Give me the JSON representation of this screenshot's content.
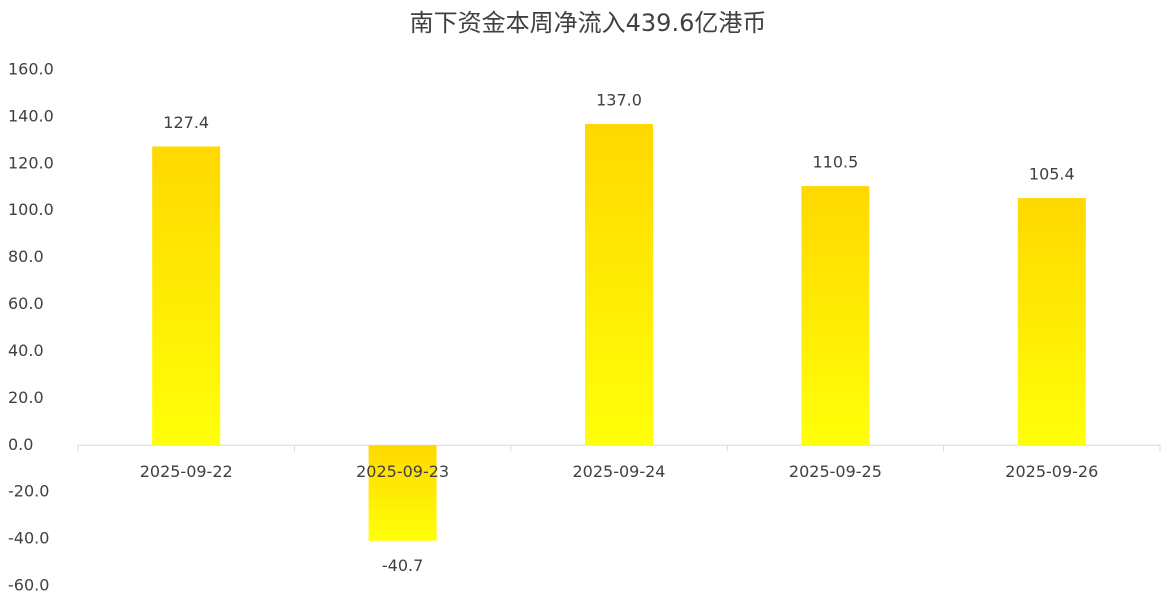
{
  "chart_data": {
    "type": "bar",
    "title": "南下资金本周净流入439.6亿港币",
    "categories": [
      "2025-09-22",
      "2025-09-23",
      "2025-09-24",
      "2025-09-25",
      "2025-09-26"
    ],
    "values": [
      127.4,
      -40.7,
      137.0,
      110.5,
      105.4
    ],
    "value_labels": [
      "127.4",
      "-40.7",
      "137.0",
      "110.5",
      "105.4"
    ],
    "gradient": [
      "#FFD800",
      "#FFFF08"
    ],
    "ylim": [
      -60,
      160
    ],
    "yticks": [
      {
        "value": -60,
        "label": "-60.0"
      },
      {
        "value": -40,
        "label": "-40.0"
      },
      {
        "value": -20,
        "label": "-20.0"
      },
      {
        "value": 0,
        "label": "0.0"
      },
      {
        "value": 20,
        "label": "20.0"
      },
      {
        "value": 40,
        "label": "40.0"
      },
      {
        "value": 60,
        "label": "60.0"
      },
      {
        "value": 80,
        "label": "80.0"
      },
      {
        "value": 100,
        "label": "100.0"
      },
      {
        "value": 120,
        "label": "120.0"
      },
      {
        "value": 140,
        "label": "140.0"
      },
      {
        "value": 160,
        "label": "160.0"
      }
    ],
    "grid": false
  }
}
